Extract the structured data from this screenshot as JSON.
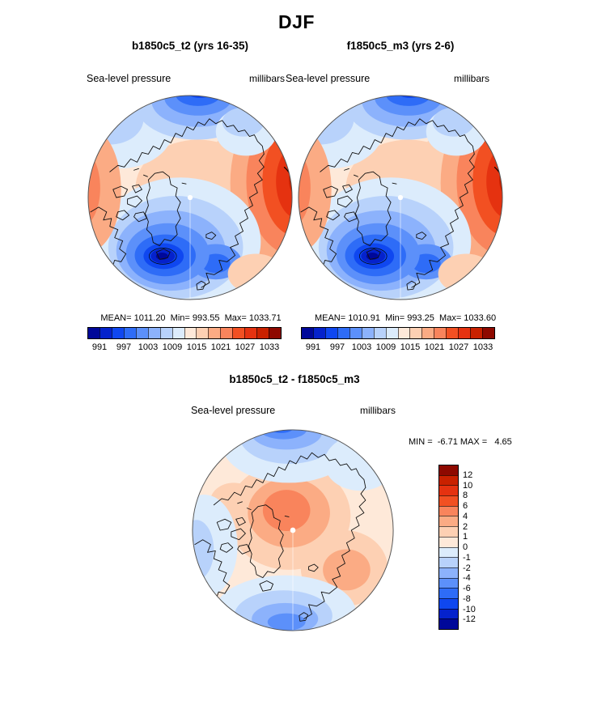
{
  "header": {
    "title": "DJF"
  },
  "top_panels": [
    {
      "title": "b1850c5_t2 (yrs 16-35)",
      "field_label": "Sea-level pressure",
      "units_label": "millibars",
      "stats_line": "MEAN= 1011.20  Min= 993.55  Max= 1033.71",
      "colorbar_ticks": [
        "991",
        "997",
        "1003",
        "1009",
        "1015",
        "1021",
        "1027",
        "1033"
      ]
    },
    {
      "title": "f1850c5_m3 (yrs 2-6)",
      "field_label": "Sea-level pressure",
      "units_label": "millibars",
      "stats_line": "MEAN= 1010.91  Min= 993.25  Max= 1033.60",
      "colorbar_ticks": [
        "991",
        "997",
        "1003",
        "1009",
        "1015",
        "1021",
        "1027",
        "1033"
      ]
    }
  ],
  "diff_panel": {
    "title": "b1850c5_t2 - f1850c5_m3",
    "field_label": "Sea-level pressure",
    "units_label": "millibars",
    "minmax_line": "MIN =  -6.71 MAX =   4.65",
    "colorbar_ticks": [
      "12",
      "10",
      "8",
      "6",
      "4",
      "2",
      "1",
      "0",
      "-1",
      "-2",
      "-4",
      "-6",
      "-8",
      "-10",
      "-12"
    ]
  },
  "palette": {
    "pressure_colors": [
      "#000899",
      "#0522cc",
      "#0f47f0",
      "#2e6cf7",
      "#5c90fa",
      "#8cb2fc",
      "#b8d2fb",
      "#dcecfc",
      "#fee9d9",
      "#fdd0b3",
      "#fbab84",
      "#f9845c",
      "#f25022",
      "#e53210",
      "#c92100",
      "#8e0900"
    ],
    "diff_colors": [
      "#8e0900",
      "#c92100",
      "#e53210",
      "#f25022",
      "#f9845c",
      "#fbab84",
      "#fdd0b3",
      "#fee9d9",
      "#dcecfc",
      "#b8d2fb",
      "#8cb2fc",
      "#5c90fa",
      "#2e6cf7",
      "#0f47f0",
      "#0522cc",
      "#000899"
    ]
  },
  "chart_data": [
    {
      "type": "heatmap",
      "title": "b1850c5_t2 (yrs 16-35)",
      "season": "DJF",
      "variable": "Sea-level pressure",
      "units": "millibars",
      "projection": "north-polar-stereographic",
      "mean": 1011.2,
      "min": 993.55,
      "max": 1033.71,
      "contour_levels": [
        991,
        994,
        997,
        1000,
        1003,
        1006,
        1009,
        1012,
        1015,
        1018,
        1021,
        1024,
        1027,
        1030,
        1033
      ],
      "colorbar_ticks": [
        991,
        997,
        1003,
        1009,
        1015,
        1021,
        1027,
        1033
      ],
      "legend_position": "bottom"
    },
    {
      "type": "heatmap",
      "title": "f1850c5_m3 (yrs 2-6)",
      "season": "DJF",
      "variable": "Sea-level pressure",
      "units": "millibars",
      "projection": "north-polar-stereographic",
      "mean": 1010.91,
      "min": 993.25,
      "max": 1033.6,
      "contour_levels": [
        991,
        994,
        997,
        1000,
        1003,
        1006,
        1009,
        1012,
        1015,
        1018,
        1021,
        1024,
        1027,
        1030,
        1033
      ],
      "colorbar_ticks": [
        991,
        997,
        1003,
        1009,
        1015,
        1021,
        1027,
        1033
      ],
      "legend_position": "bottom"
    },
    {
      "type": "heatmap",
      "title": "b1850c5_t2 - f1850c5_m3",
      "season": "DJF",
      "variable": "Sea-level pressure",
      "units": "millibars",
      "projection": "north-polar-stereographic",
      "min": -6.71,
      "max": 4.65,
      "contour_levels": [
        -12,
        -10,
        -8,
        -6,
        -4,
        -2,
        -1,
        0,
        1,
        2,
        4,
        6,
        8,
        10,
        12
      ],
      "colorbar_ticks": [
        12,
        10,
        8,
        6,
        4,
        2,
        1,
        0,
        -1,
        -2,
        -4,
        -6,
        -8,
        -10,
        -12
      ],
      "legend_position": "right"
    }
  ]
}
